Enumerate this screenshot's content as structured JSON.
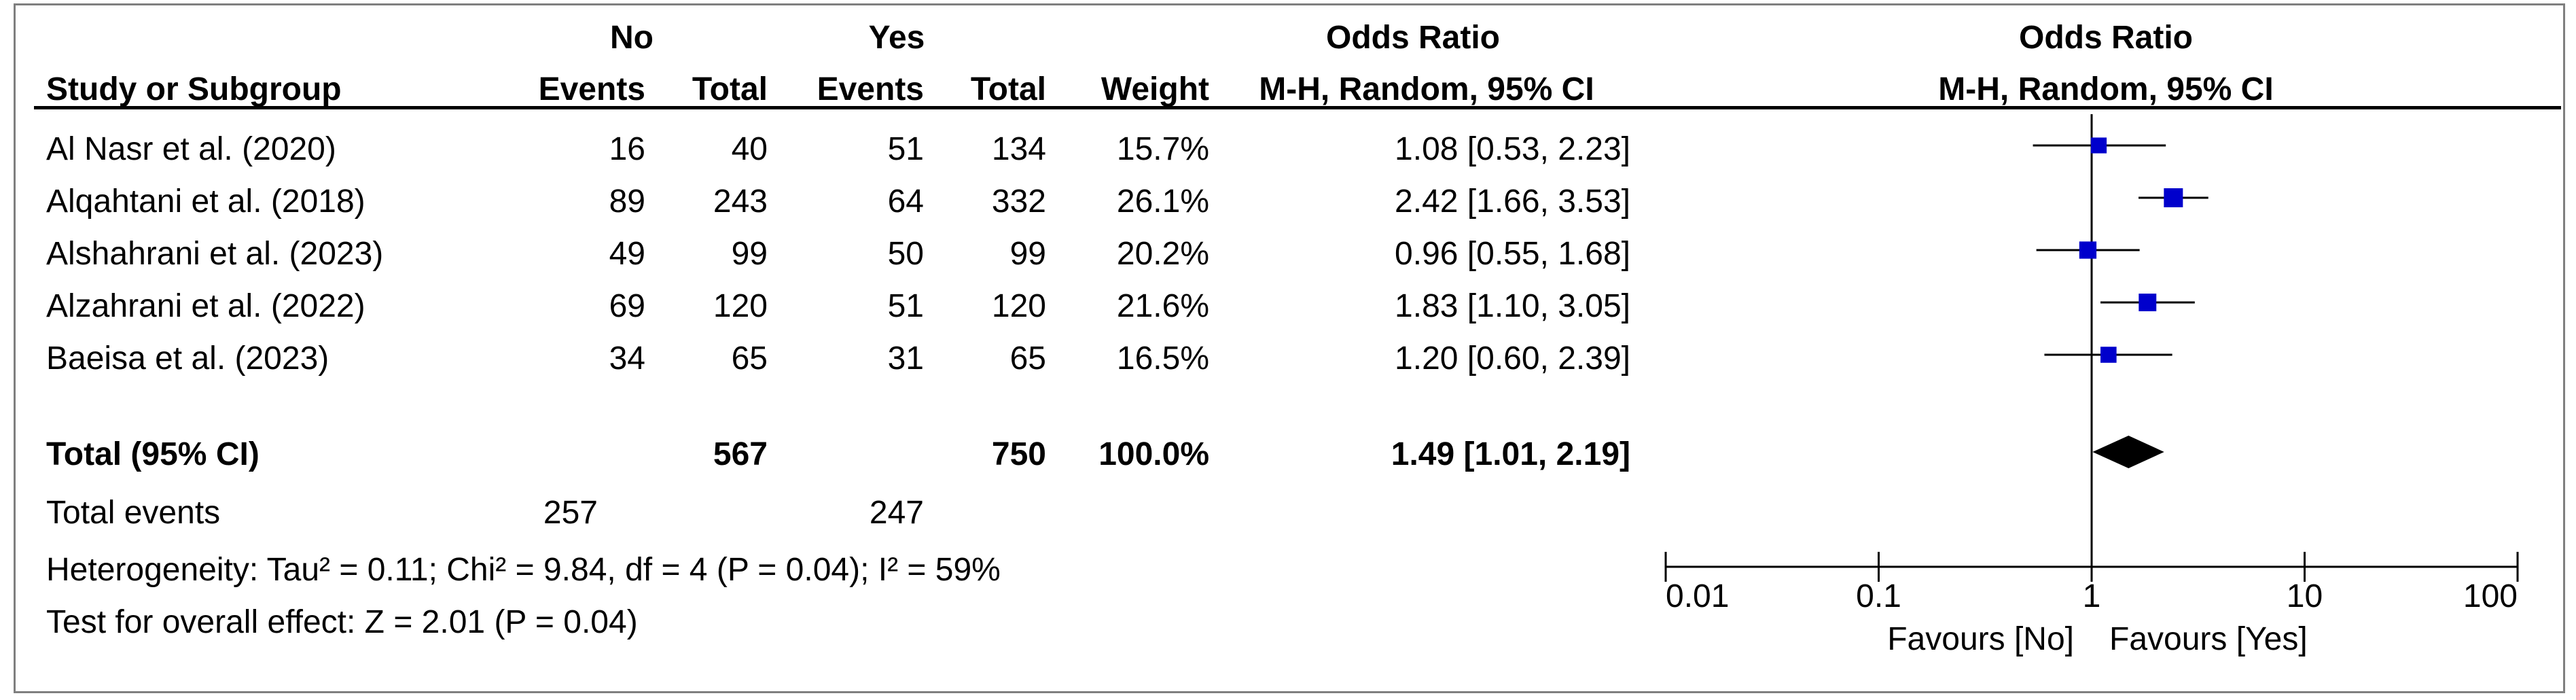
{
  "header": {
    "group_no": "No",
    "group_yes": "Yes",
    "study_col": "Study or Subgroup",
    "events": "Events",
    "total": "Total",
    "weight": "Weight",
    "or_title": "Odds Ratio",
    "or_method": "M-H, Random, 95% CI",
    "plot_title": "Odds Ratio",
    "plot_method": "M-H, Random, 95% CI"
  },
  "studies": [
    {
      "name": "Al Nasr et al. (2020)",
      "no_events": "16",
      "no_total": "40",
      "yes_events": "51",
      "yes_total": "134",
      "weight": "15.7%",
      "ci_text": "1.08 [0.53, 2.23]"
    },
    {
      "name": "Alqahtani et al. (2018)",
      "no_events": "89",
      "no_total": "243",
      "yes_events": "64",
      "yes_total": "332",
      "weight": "26.1%",
      "ci_text": "2.42 [1.66, 3.53]"
    },
    {
      "name": "Alshahrani et al. (2023)",
      "no_events": "49",
      "no_total": "99",
      "yes_events": "50",
      "yes_total": "99",
      "weight": "20.2%",
      "ci_text": "0.96 [0.55, 1.68]"
    },
    {
      "name": "Alzahrani et al. (2022)",
      "no_events": "69",
      "no_total": "120",
      "yes_events": "51",
      "yes_total": "120",
      "weight": "21.6%",
      "ci_text": "1.83 [1.10, 3.05]"
    },
    {
      "name": "Baeisa et al. (2023)",
      "no_events": "34",
      "no_total": "65",
      "yes_events": "31",
      "yes_total": "65",
      "weight": "16.5%",
      "ci_text": "1.20 [0.60, 2.39]"
    }
  ],
  "total": {
    "label": "Total (95% CI)",
    "no_total": "567",
    "yes_total": "750",
    "weight": "100.0%",
    "ci_text": "1.49 [1.01, 2.19]"
  },
  "total_events": {
    "label": "Total events",
    "no": "257",
    "yes": "247"
  },
  "heterogeneity": "Heterogeneity: Tau² = 0.11; Chi² = 9.84, df = 4 (P = 0.04); I² = 59%",
  "overall_effect": "Test for overall effect: Z = 2.01 (P = 0.04)",
  "colors": {
    "study_marker": "#0000cc",
    "diamond": "#000000",
    "lines": "#000000"
  },
  "chart_data": {
    "type": "forest",
    "x_scale": "log",
    "xlim": [
      0.01,
      100
    ],
    "x_ticks": [
      "0.01",
      "0.1",
      "1",
      "10",
      "100"
    ],
    "x_tick_values": [
      0.01,
      0.1,
      1,
      10,
      100
    ],
    "reference_line": 1,
    "favours_left": "Favours [No]",
    "favours_right": "Favours [Yes]",
    "studies": [
      {
        "or": 1.08,
        "lo": 0.53,
        "hi": 2.23,
        "weight": 15.7
      },
      {
        "or": 2.42,
        "lo": 1.66,
        "hi": 3.53,
        "weight": 26.1
      },
      {
        "or": 0.96,
        "lo": 0.55,
        "hi": 1.68,
        "weight": 20.2
      },
      {
        "or": 1.83,
        "lo": 1.1,
        "hi": 3.05,
        "weight": 21.6
      },
      {
        "or": 1.2,
        "lo": 0.6,
        "hi": 2.39,
        "weight": 16.5
      }
    ],
    "pooled": {
      "or": 1.49,
      "lo": 1.01,
      "hi": 2.19
    }
  }
}
